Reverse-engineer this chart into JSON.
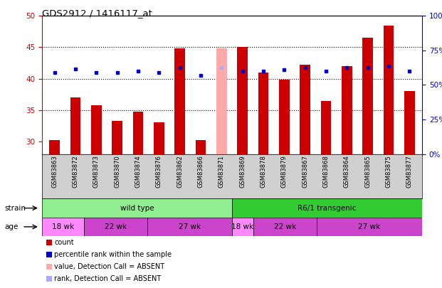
{
  "title": "GDS2912 / 1416117_at",
  "samples": [
    "GSM83863",
    "GSM83872",
    "GSM83873",
    "GSM83870",
    "GSM83874",
    "GSM83876",
    "GSM83862",
    "GSM83866",
    "GSM83871",
    "GSM83869",
    "GSM83878",
    "GSM83879",
    "GSM83867",
    "GSM83868",
    "GSM83864",
    "GSM83865",
    "GSM83875",
    "GSM83877"
  ],
  "bar_values": [
    30.2,
    37.0,
    35.8,
    33.3,
    34.8,
    33.0,
    44.8,
    30.2,
    44.8,
    45.0,
    41.0,
    39.8,
    42.2,
    36.4,
    42.0,
    46.5,
    48.5,
    38.0
  ],
  "bar_colors": [
    "#cc0000",
    "#cc0000",
    "#cc0000",
    "#cc0000",
    "#cc0000",
    "#cc0000",
    "#cc0000",
    "#cc0000",
    "#ffaaaa",
    "#cc0000",
    "#cc0000",
    "#cc0000",
    "#cc0000",
    "#cc0000",
    "#cc0000",
    "#cc0000",
    "#cc0000",
    "#cc0000"
  ],
  "rank_values": [
    41.0,
    41.5,
    41.0,
    41.0,
    41.2,
    41.0,
    41.8,
    40.5,
    41.8,
    41.2,
    41.2,
    41.4,
    41.8,
    41.2,
    41.8,
    41.8,
    42.0,
    41.2
  ],
  "rank_colors": [
    "#0000cc",
    "#0000cc",
    "#0000cc",
    "#0000cc",
    "#0000cc",
    "#0000cc",
    "#0000cc",
    "#0000cc",
    "#aaaaff",
    "#0000cc",
    "#0000cc",
    "#0000cc",
    "#0000cc",
    "#0000cc",
    "#0000cc",
    "#0000cc",
    "#0000cc",
    "#0000cc"
  ],
  "ylim_left": [
    28,
    50
  ],
  "ylim_right": [
    0,
    100
  ],
  "yticks_left": [
    30,
    35,
    40,
    45,
    50
  ],
  "yticks_right": [
    0,
    25,
    50,
    75,
    100
  ],
  "ytick_labels_right": [
    "0%",
    "25%",
    "50%",
    "75%",
    "100%"
  ],
  "bar_width": 0.5,
  "left_axis_color": "#cc0000",
  "right_axis_color": "#0000cc",
  "age_groups": [
    {
      "label": "18 wk",
      "start": 0,
      "end": 2,
      "color": "#ff88ff"
    },
    {
      "label": "22 wk",
      "start": 2,
      "end": 5,
      "color": "#cc44cc"
    },
    {
      "label": "27 wk",
      "start": 5,
      "end": 9,
      "color": "#cc44cc"
    },
    {
      "label": "18 wk",
      "start": 9,
      "end": 10,
      "color": "#ff88ff"
    },
    {
      "label": "22 wk",
      "start": 10,
      "end": 13,
      "color": "#cc44cc"
    },
    {
      "label": "27 wk",
      "start": 13,
      "end": 18,
      "color": "#cc44cc"
    }
  ],
  "legend_items": [
    {
      "color": "#cc0000",
      "label": "count"
    },
    {
      "color": "#0000cc",
      "label": "percentile rank within the sample"
    },
    {
      "color": "#ffaaaa",
      "label": "value, Detection Call = ABSENT"
    },
    {
      "color": "#aaaaff",
      "label": "rank, Detection Call = ABSENT"
    }
  ]
}
